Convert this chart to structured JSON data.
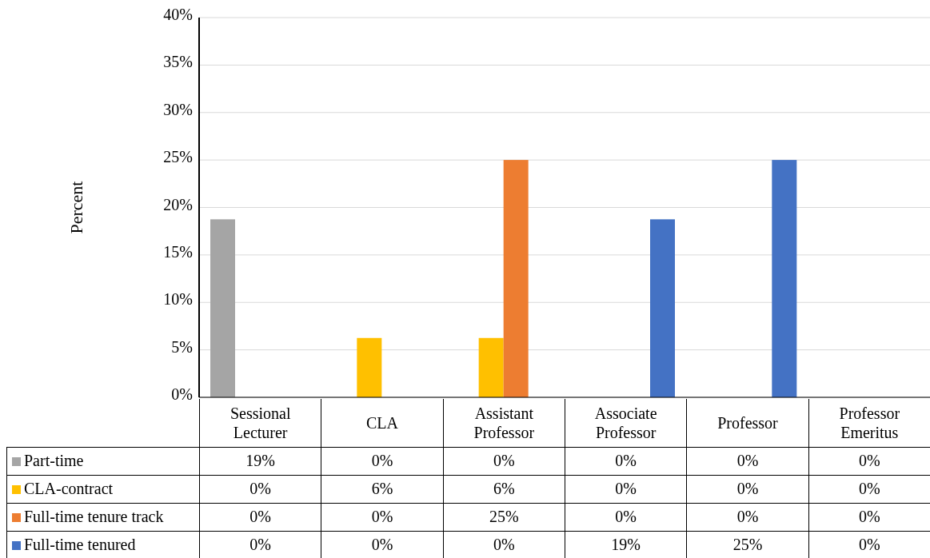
{
  "chart_data": {
    "type": "bar",
    "ylabel": "Percent",
    "categories": [
      "Sessional Lecturer",
      "CLA",
      "Assistant Professor",
      "Associate Professor",
      "Professor",
      "Professor Emeritus"
    ],
    "series": [
      {
        "name": "Part-time",
        "color": "#a5a5a5",
        "values": [
          18.75,
          0,
          0,
          0,
          0,
          0
        ],
        "value_labels": [
          "19%",
          "0%",
          "0%",
          "0%",
          "0%",
          "0%"
        ]
      },
      {
        "name": "CLA-contract",
        "color": "#ffc000",
        "values": [
          0,
          6.25,
          6.25,
          0,
          0,
          0
        ],
        "value_labels": [
          "0%",
          "6%",
          "6%",
          "0%",
          "0%",
          "0%"
        ]
      },
      {
        "name": "Full-time tenure track",
        "color": "#ed7d31",
        "values": [
          0,
          0,
          25,
          0,
          0,
          0
        ],
        "value_labels": [
          "0%",
          "0%",
          "25%",
          "0%",
          "0%",
          "0%"
        ]
      },
      {
        "name": "Full-time tenured",
        "color": "#4472c4",
        "values": [
          0,
          0,
          0,
          18.75,
          25,
          0
        ],
        "value_labels": [
          "0%",
          "0%",
          "0%",
          "19%",
          "25%",
          "0%"
        ]
      }
    ],
    "ylim": [
      0,
      40
    ],
    "yticks": [
      {
        "value": 0,
        "label": "0%"
      },
      {
        "value": 5,
        "label": "5%"
      },
      {
        "value": 10,
        "label": "10%"
      },
      {
        "value": 15,
        "label": "15%"
      },
      {
        "value": 20,
        "label": "20%"
      },
      {
        "value": 25,
        "label": "25%"
      },
      {
        "value": 30,
        "label": "30%"
      },
      {
        "value": 35,
        "label": "35%"
      },
      {
        "value": 40,
        "label": "40%"
      }
    ],
    "grid": "y",
    "legend": "bottom"
  }
}
